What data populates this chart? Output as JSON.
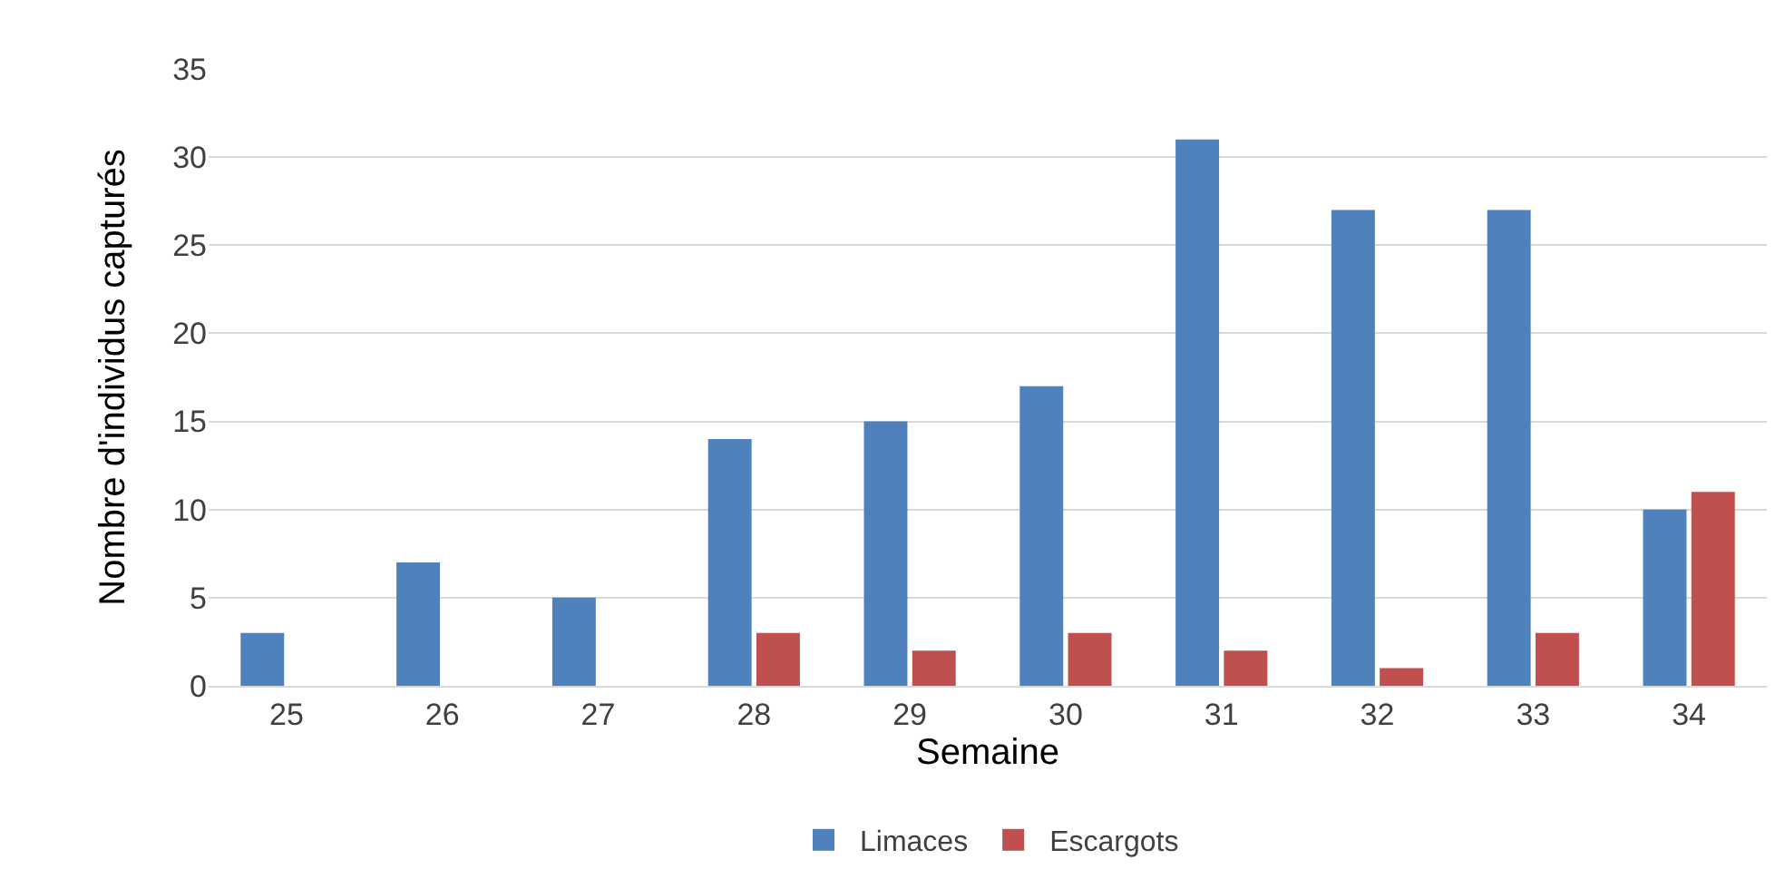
{
  "chart_data": {
    "type": "bar",
    "xlabel": "Semaine",
    "ylabel": "Nombre d'individus capturés",
    "categories": [
      "25",
      "26",
      "27",
      "28",
      "29",
      "30",
      "31",
      "32",
      "33",
      "34"
    ],
    "series": [
      {
        "name": "Limaces",
        "color": "#4f81bd",
        "values": [
          3,
          7,
          5,
          14,
          15,
          17,
          31,
          27,
          27,
          10
        ]
      },
      {
        "name": "Escargots",
        "color": "#c0504d",
        "values": [
          0,
          0,
          0,
          3,
          2,
          3,
          2,
          1,
          3,
          11
        ]
      }
    ],
    "ylim": [
      0,
      35
    ],
    "yticks": [
      0,
      5,
      10,
      15,
      20,
      25,
      30,
      35
    ],
    "grid": "y",
    "legend": "bottom"
  }
}
